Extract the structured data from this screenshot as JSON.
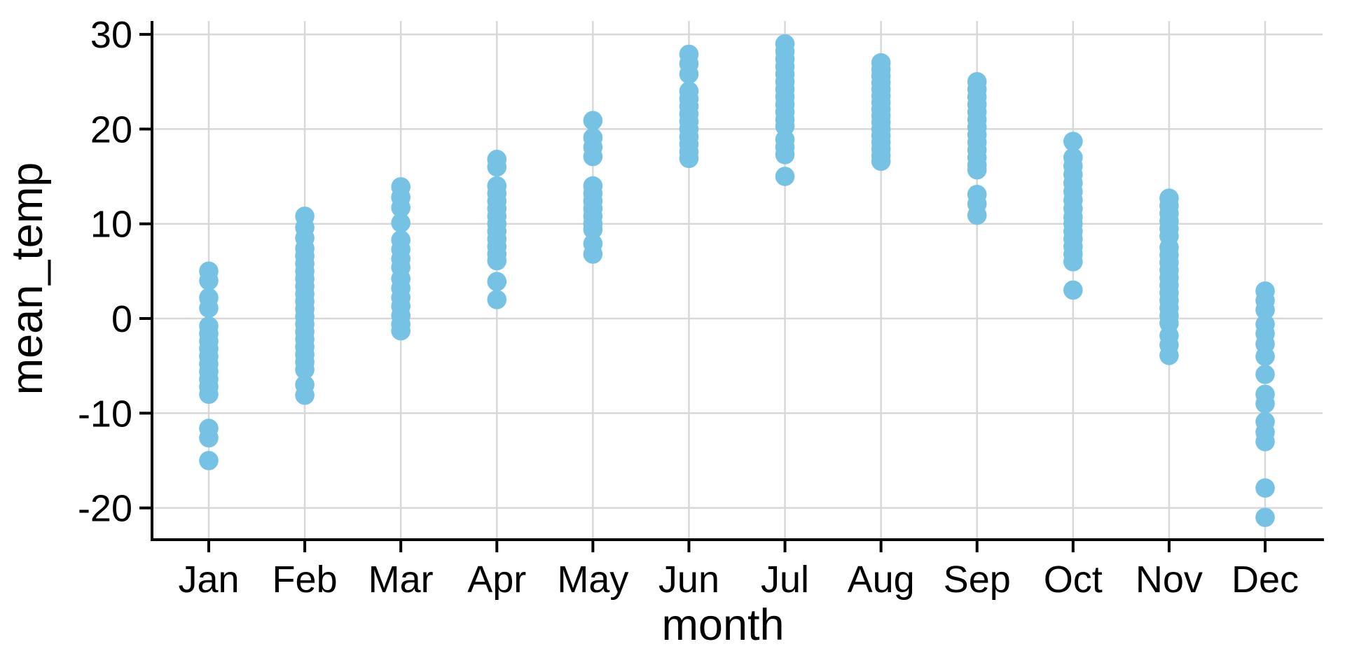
{
  "chart_data": {
    "type": "scatter",
    "subtype": "strip-plot",
    "title": "",
    "xlabel": "month",
    "ylabel": "mean_temp",
    "categories": [
      "Jan",
      "Feb",
      "Mar",
      "Apr",
      "May",
      "Jun",
      "Jul",
      "Aug",
      "Sep",
      "Oct",
      "Nov",
      "Dec"
    ],
    "y_ticks": [
      30,
      20,
      10,
      0,
      -10,
      -20
    ],
    "ylim": [
      -23.5,
      31.5
    ],
    "grid": true,
    "legend": false,
    "point_color": "#75C2E5",
    "grid_color": "#D8D8D8",
    "axis_color": "#000000",
    "series": [
      {
        "name": "Jan",
        "values": [
          5.0,
          4.0,
          2.2,
          1.1,
          -0.8,
          -1.6,
          -2.4,
          -3.2,
          -4.0,
          -4.8,
          -5.6,
          -6.4,
          -7.2,
          -8.0,
          -11.6,
          -12.6,
          -15.0
        ]
      },
      {
        "name": "Feb",
        "values": [
          10.8,
          9.6,
          8.5,
          7.4,
          6.6,
          5.8,
          5.0,
          4.2,
          3.4,
          2.6,
          1.8,
          1.0,
          0.2,
          -0.6,
          -1.4,
          -2.2,
          -3.0,
          -3.8,
          -4.6,
          -5.4,
          -7.0,
          -8.1
        ]
      },
      {
        "name": "Mar",
        "values": [
          13.9,
          12.8,
          11.7,
          10.1,
          8.3,
          7.3,
          6.3,
          5.4,
          4.2,
          3.2,
          2.2,
          1.3,
          0.3,
          -0.6,
          -1.3
        ]
      },
      {
        "name": "Apr",
        "values": [
          16.8,
          16.0,
          14.0,
          13.2,
          12.4,
          11.6,
          10.8,
          10.0,
          9.2,
          8.4,
          7.6,
          6.8,
          6.1,
          3.9,
          2.0
        ]
      },
      {
        "name": "May",
        "values": [
          20.9,
          19.1,
          18.1,
          17.1,
          14.0,
          13.2,
          12.4,
          11.6,
          10.8,
          10.0,
          9.4,
          7.9,
          6.8
        ]
      },
      {
        "name": "Jun",
        "values": [
          27.9,
          26.9,
          25.8,
          24.0,
          23.2,
          22.4,
          21.6,
          20.8,
          20.0,
          19.2,
          18.4,
          17.6,
          16.9
        ]
      },
      {
        "name": "Jul",
        "values": [
          29.0,
          28.2,
          27.4,
          26.6,
          25.8,
          25.0,
          24.2,
          23.4,
          22.6,
          21.8,
          21.0,
          20.3,
          18.9,
          18.1,
          17.3,
          15.0
        ]
      },
      {
        "name": "Aug",
        "values": [
          27.0,
          26.3,
          25.6,
          24.9,
          24.2,
          23.5,
          22.8,
          22.1,
          21.4,
          20.7,
          20.0,
          19.3,
          18.6,
          17.9,
          17.2,
          16.6
        ]
      },
      {
        "name": "Sep",
        "values": [
          25.0,
          24.2,
          23.4,
          22.6,
          21.8,
          21.0,
          20.2,
          19.4,
          18.6,
          17.8,
          17.0,
          16.2,
          15.7,
          13.1,
          12.1,
          10.9
        ]
      },
      {
        "name": "Oct",
        "values": [
          18.7,
          17.0,
          16.1,
          15.2,
          14.3,
          13.4,
          12.5,
          11.6,
          10.7,
          10.0,
          9.2,
          8.4,
          7.6,
          6.8,
          6.0,
          3.0
        ]
      },
      {
        "name": "Nov",
        "values": [
          12.7,
          11.9,
          11.1,
          10.3,
          9.5,
          8.7,
          7.5,
          6.7,
          5.9,
          5.1,
          4.3,
          3.5,
          2.7,
          1.9,
          1.1,
          0.3,
          -0.5,
          -1.8,
          -2.8,
          -3.9
        ]
      },
      {
        "name": "Dec",
        "values": [
          2.9,
          1.9,
          0.9,
          -0.6,
          -1.6,
          -2.7,
          -4.0,
          -5.9,
          -8.0,
          -9.0,
          -10.9,
          -12.0,
          -13.0,
          -17.9,
          -21.0
        ]
      }
    ]
  }
}
